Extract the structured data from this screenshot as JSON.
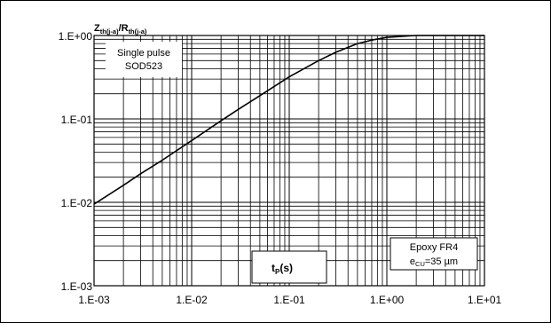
{
  "chart_data": {
    "type": "line",
    "scale": {
      "x": "log",
      "y": "log"
    },
    "grid": true,
    "xlim": [
      0.001,
      10
    ],
    "ylim": [
      0.001,
      1
    ],
    "x_tick_labels": [
      "1.E-03",
      "1.E-02",
      "1.E-01",
      "1.E+00",
      "1.E+01"
    ],
    "y_tick_labels": [
      "1.E-03",
      "1.E-02",
      "1.E-01",
      "1.E+00"
    ],
    "ylabel": {
      "main": "Z",
      "main_sub": "th(j-a)",
      "sep": "/R",
      "sep_sub": "th(j-a)"
    },
    "xlabel": {
      "main": "t",
      "sub": "P",
      "rest": "(s)"
    },
    "annotations": {
      "pulse_line1": "Single pulse",
      "pulse_line2": "SOD523",
      "board_line1": "Epoxy FR4",
      "board_line2_main": "e",
      "board_line2_sub": "CU",
      "board_line2_rest": "=35 µm"
    },
    "series": [
      {
        "x": [
          0.001,
          0.002,
          0.003,
          0.005,
          0.01,
          0.02,
          0.03,
          0.05,
          0.1,
          0.2,
          0.3,
          0.5,
          0.7,
          1,
          2,
          3,
          5,
          10
        ],
        "y": [
          0.0095,
          0.016,
          0.022,
          0.032,
          0.055,
          0.095,
          0.13,
          0.19,
          0.32,
          0.5,
          0.63,
          0.8,
          0.88,
          0.95,
          1.0,
          1.0,
          1.0,
          1.0
        ]
      }
    ],
    "line_color": "#000000"
  }
}
